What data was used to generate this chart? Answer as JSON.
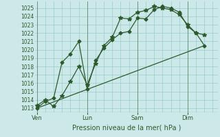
{
  "background_color": "#cce8e8",
  "grid_color": "#99cccc",
  "line_color": "#2d5a2d",
  "title": "Pression niveau de la mer( hPa )",
  "ylim": [
    1012.5,
    1025.8
  ],
  "yticks": [
    1013,
    1014,
    1015,
    1016,
    1017,
    1018,
    1019,
    1020,
    1021,
    1022,
    1023,
    1024,
    1025
  ],
  "xtick_labels": [
    "Ven",
    "Lun",
    "Sam",
    "Dim"
  ],
  "xtick_positions": [
    0,
    3,
    6,
    9
  ],
  "vline_positions": [
    0,
    3,
    6,
    9
  ],
  "line1_x": [
    0,
    0.5,
    1.0,
    1.5,
    2.0,
    2.5,
    3.0,
    3.5,
    4.0,
    4.5,
    5.0,
    5.5,
    6.0,
    6.5,
    7.0,
    7.5,
    8.0,
    8.5,
    9.0,
    9.5,
    10.0
  ],
  "line1_y": [
    1013.0,
    1013.8,
    1014.2,
    1018.5,
    1019.5,
    1021.0,
    1015.3,
    1018.7,
    1020.2,
    1021.2,
    1022.0,
    1022.2,
    1023.8,
    1023.7,
    1024.8,
    1025.2,
    1025.0,
    1024.5,
    1022.8,
    1022.0,
    1020.5
  ],
  "line2_x": [
    0,
    0.5,
    1.0,
    1.5,
    2.0,
    2.5,
    3.0,
    3.5,
    4.0,
    4.5,
    5.0,
    5.5,
    6.0,
    6.5,
    7.0,
    7.5,
    8.0,
    8.5,
    9.0,
    9.5,
    10.0
  ],
  "line2_y": [
    1013.3,
    1014.0,
    1013.2,
    1014.5,
    1016.2,
    1018.0,
    1015.8,
    1018.3,
    1020.5,
    1021.5,
    1023.8,
    1023.7,
    1024.5,
    1024.7,
    1025.2,
    1025.0,
    1024.8,
    1024.2,
    1023.0,
    1022.0,
    1021.8
  ],
  "line3_x": [
    0,
    10.0
  ],
  "line3_y": [
    1013.0,
    1020.5
  ],
  "xlim": [
    -0.1,
    10.8
  ]
}
